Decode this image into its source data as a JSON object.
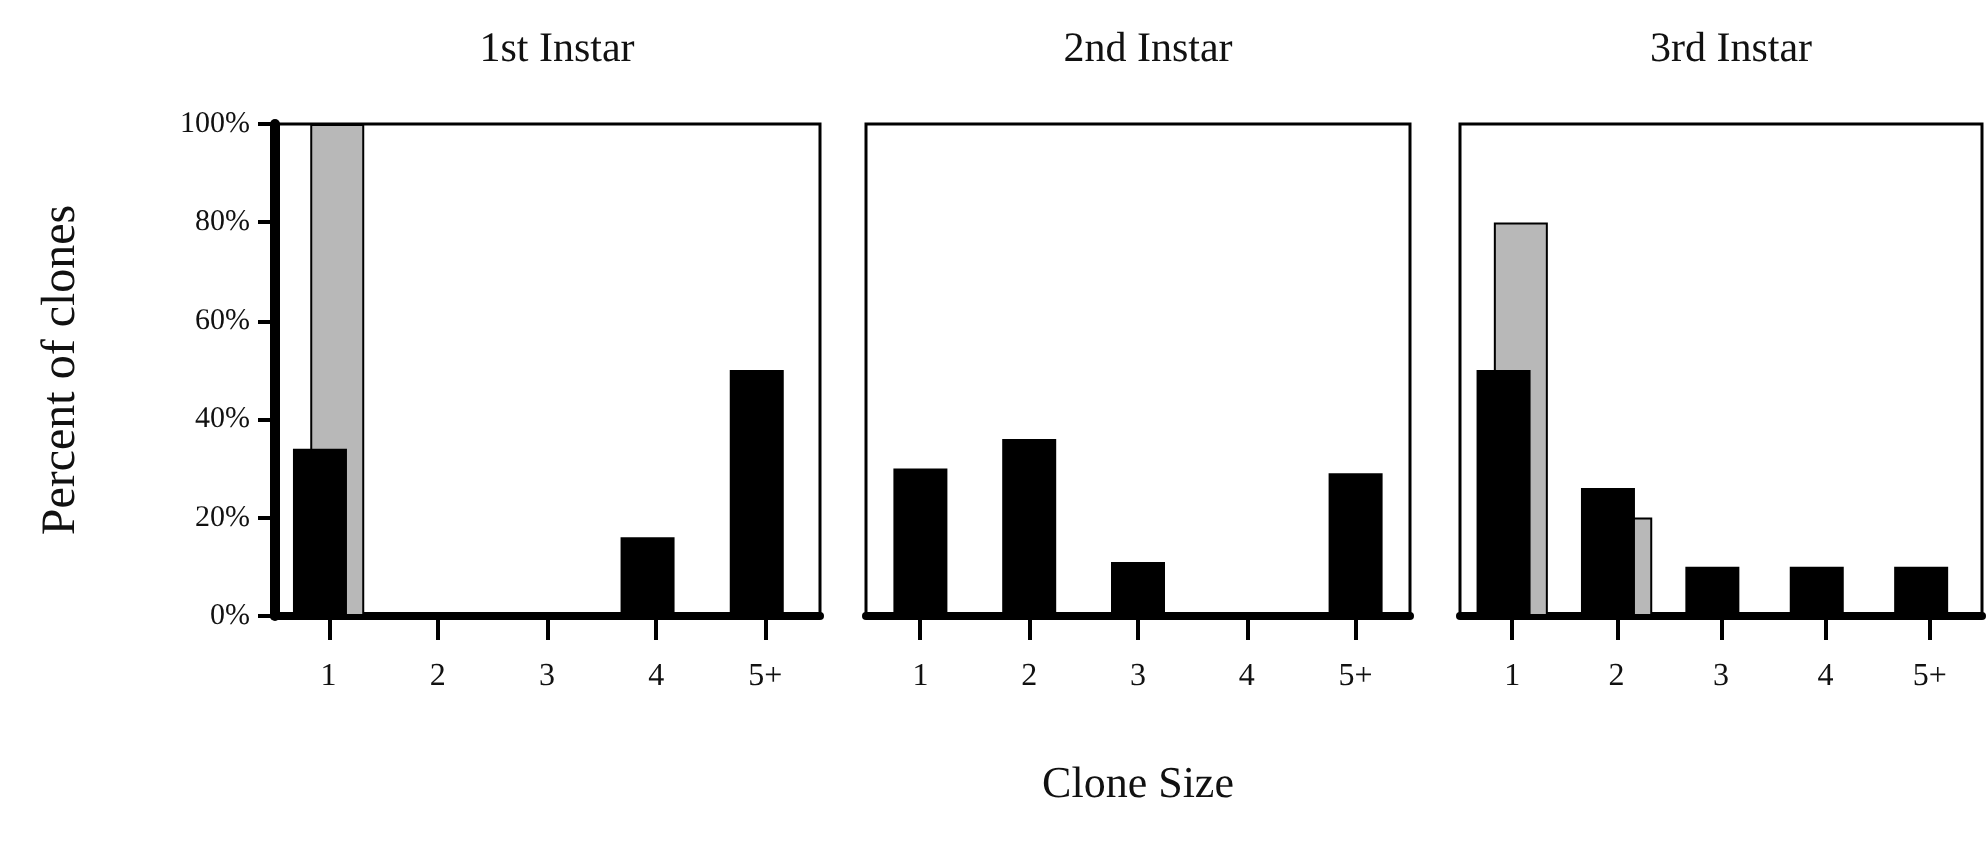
{
  "chart_data": [
    {
      "type": "bar",
      "title": "1st Instar",
      "ylabel": "Percent of clones",
      "categories": [
        "1",
        "2",
        "3",
        "4",
        "5+"
      ],
      "series": [
        {
          "color": "#000000",
          "values": [
            34,
            0,
            0,
            16,
            50
          ]
        },
        {
          "color": "#b8b8b8",
          "values": [
            100,
            null,
            null,
            null,
            null
          ]
        }
      ],
      "ylim": [
        0,
        100
      ],
      "yticks": [
        {
          "value": 0,
          "label": "0%"
        },
        {
          "value": 20,
          "label": "20%"
        },
        {
          "value": 40,
          "label": "40%"
        },
        {
          "value": 60,
          "label": "60%"
        },
        {
          "value": 80,
          "label": "80%"
        },
        {
          "value": 100,
          "label": "100%"
        }
      ],
      "grid": false
    },
    {
      "type": "bar",
      "title": "2nd Instar",
      "xlabel": "Clone Size",
      "categories": [
        "1",
        "2",
        "3",
        "4",
        "5+"
      ],
      "series": [
        {
          "color": "#000000",
          "values": [
            30,
            36,
            11,
            0,
            29
          ]
        }
      ],
      "ylim": [
        0,
        100
      ],
      "tick_labels": "x",
      "grid": false
    },
    {
      "type": "bar",
      "title": "3rd Instar",
      "categories": [
        "1",
        "2",
        "3",
        "4",
        "5+"
      ],
      "series": [
        {
          "color": "#000000",
          "values": [
            50,
            26,
            10,
            10,
            10
          ]
        },
        {
          "color": "#b8b8b8",
          "values": [
            80,
            20,
            null,
            null,
            null
          ]
        }
      ],
      "ylim": [
        0,
        100
      ],
      "tick_labels": "x",
      "grid": false
    }
  ]
}
